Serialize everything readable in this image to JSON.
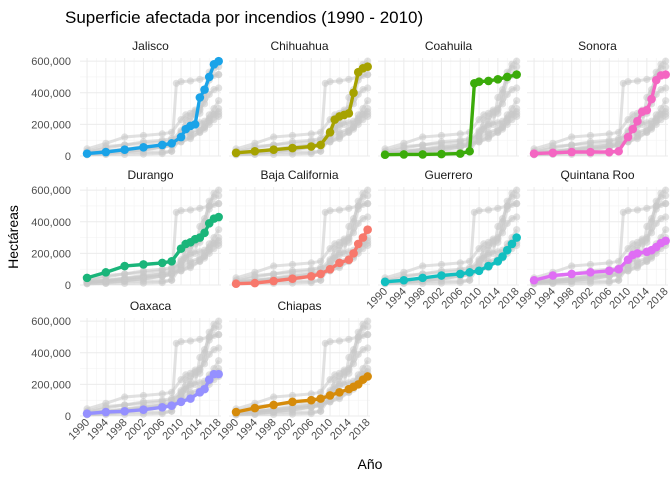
{
  "chart_data": {
    "type": "line",
    "title": "Superficie afectada por incendios (1990 - 2010)",
    "xlabel": "Año",
    "ylabel": "Hectáreas",
    "ylim": [
      0,
      620000
    ],
    "xlim": [
      1988.5,
      2018.5
    ],
    "y_ticks": [
      0,
      200000,
      400000,
      600000
    ],
    "y_tick_labels": [
      "0",
      "200,000",
      "400,000",
      "600,000"
    ],
    "x_ticks": [
      1990,
      1994,
      1998,
      2002,
      2006,
      2010,
      2014,
      2018
    ],
    "x_tick_labels": [
      "1990",
      "1994",
      "1998",
      "2002",
      "2006",
      "2010",
      "2014",
      "2018"
    ],
    "grid": true,
    "legend": "none",
    "facet_layout": {
      "columns": 4,
      "rows": 3
    },
    "background_series_color": "#c8c8c8",
    "panels": [
      {
        "name": "Jalisco",
        "color": "#1aa3e8",
        "points": [
          [
            1990,
            15000
          ],
          [
            1994,
            25000
          ],
          [
            1998,
            40000
          ],
          [
            2002,
            55000
          ],
          [
            2006,
            70000
          ],
          [
            2008,
            80000
          ],
          [
            2010,
            120000
          ],
          [
            2011,
            170000
          ],
          [
            2012,
            190000
          ],
          [
            2013,
            200000
          ],
          [
            2014,
            370000
          ],
          [
            2015,
            420000
          ],
          [
            2016,
            500000
          ],
          [
            2017,
            580000
          ],
          [
            2018,
            600000
          ]
        ]
      },
      {
        "name": "Chihuahua",
        "color": "#a6a200",
        "points": [
          [
            1990,
            20000
          ],
          [
            1994,
            30000
          ],
          [
            1998,
            40000
          ],
          [
            2002,
            50000
          ],
          [
            2006,
            60000
          ],
          [
            2008,
            70000
          ],
          [
            2010,
            150000
          ],
          [
            2011,
            230000
          ],
          [
            2012,
            250000
          ],
          [
            2013,
            260000
          ],
          [
            2014,
            270000
          ],
          [
            2015,
            400000
          ],
          [
            2016,
            530000
          ],
          [
            2017,
            555000
          ],
          [
            2018,
            565000
          ]
        ]
      },
      {
        "name": "Coahuila",
        "color": "#3bab0a",
        "points": [
          [
            1990,
            8000
          ],
          [
            1994,
            10000
          ],
          [
            1998,
            10000
          ],
          [
            2002,
            12000
          ],
          [
            2006,
            15000
          ],
          [
            2008,
            30000
          ],
          [
            2009,
            460000
          ],
          [
            2010,
            470000
          ],
          [
            2012,
            475000
          ],
          [
            2014,
            485000
          ],
          [
            2016,
            500000
          ],
          [
            2018,
            515000
          ]
        ]
      },
      {
        "name": "Sonora",
        "color": "#f466c2",
        "points": [
          [
            1990,
            15000
          ],
          [
            1994,
            20000
          ],
          [
            1998,
            25000
          ],
          [
            2002,
            25000
          ],
          [
            2006,
            25000
          ],
          [
            2008,
            30000
          ],
          [
            2010,
            120000
          ],
          [
            2011,
            170000
          ],
          [
            2012,
            220000
          ],
          [
            2013,
            280000
          ],
          [
            2014,
            290000
          ],
          [
            2015,
            360000
          ],
          [
            2016,
            480000
          ],
          [
            2017,
            510000
          ],
          [
            2018,
            515000
          ]
        ]
      },
      {
        "name": "Durango",
        "color": "#1ab57a",
        "points": [
          [
            1990,
            45000
          ],
          [
            1994,
            80000
          ],
          [
            1998,
            120000
          ],
          [
            2002,
            130000
          ],
          [
            2006,
            140000
          ],
          [
            2008,
            150000
          ],
          [
            2010,
            230000
          ],
          [
            2011,
            260000
          ],
          [
            2012,
            270000
          ],
          [
            2013,
            290000
          ],
          [
            2014,
            300000
          ],
          [
            2015,
            330000
          ],
          [
            2016,
            390000
          ],
          [
            2017,
            420000
          ],
          [
            2018,
            430000
          ]
        ]
      },
      {
        "name": "Baja California",
        "color": "#f7786c",
        "points": [
          [
            1990,
            8000
          ],
          [
            1994,
            12000
          ],
          [
            1998,
            25000
          ],
          [
            2002,
            40000
          ],
          [
            2006,
            55000
          ],
          [
            2008,
            70000
          ],
          [
            2010,
            100000
          ],
          [
            2012,
            140000
          ],
          [
            2014,
            160000
          ],
          [
            2015,
            200000
          ],
          [
            2016,
            260000
          ],
          [
            2017,
            300000
          ],
          [
            2018,
            350000
          ]
        ]
      },
      {
        "name": "Guerrero",
        "color": "#12bfc0",
        "points": [
          [
            1990,
            20000
          ],
          [
            1994,
            30000
          ],
          [
            1998,
            45000
          ],
          [
            2002,
            60000
          ],
          [
            2006,
            70000
          ],
          [
            2008,
            80000
          ],
          [
            2010,
            90000
          ],
          [
            2012,
            120000
          ],
          [
            2014,
            150000
          ],
          [
            2015,
            180000
          ],
          [
            2016,
            220000
          ],
          [
            2017,
            260000
          ],
          [
            2018,
            300000
          ]
        ]
      },
      {
        "name": "Quintana Roo",
        "color": "#df6df4",
        "points": [
          [
            1990,
            30000
          ],
          [
            1994,
            60000
          ],
          [
            1998,
            70000
          ],
          [
            2002,
            80000
          ],
          [
            2006,
            90000
          ],
          [
            2008,
            100000
          ],
          [
            2010,
            160000
          ],
          [
            2011,
            190000
          ],
          [
            2012,
            200000
          ],
          [
            2014,
            210000
          ],
          [
            2015,
            220000
          ],
          [
            2016,
            240000
          ],
          [
            2017,
            265000
          ],
          [
            2018,
            280000
          ]
        ]
      },
      {
        "name": "Oaxaca",
        "color": "#9590ff",
        "points": [
          [
            1990,
            15000
          ],
          [
            1994,
            25000
          ],
          [
            1998,
            30000
          ],
          [
            2002,
            40000
          ],
          [
            2006,
            55000
          ],
          [
            2008,
            65000
          ],
          [
            2010,
            90000
          ],
          [
            2012,
            110000
          ],
          [
            2014,
            150000
          ],
          [
            2015,
            170000
          ],
          [
            2016,
            230000
          ],
          [
            2017,
            265000
          ],
          [
            2018,
            265000
          ]
        ]
      },
      {
        "name": "Chiapas",
        "color": "#d68b0a",
        "points": [
          [
            1990,
            25000
          ],
          [
            1994,
            50000
          ],
          [
            1998,
            70000
          ],
          [
            2002,
            90000
          ],
          [
            2006,
            100000
          ],
          [
            2008,
            110000
          ],
          [
            2010,
            130000
          ],
          [
            2012,
            150000
          ],
          [
            2014,
            170000
          ],
          [
            2015,
            185000
          ],
          [
            2016,
            200000
          ],
          [
            2017,
            230000
          ],
          [
            2018,
            250000
          ]
        ]
      }
    ]
  }
}
